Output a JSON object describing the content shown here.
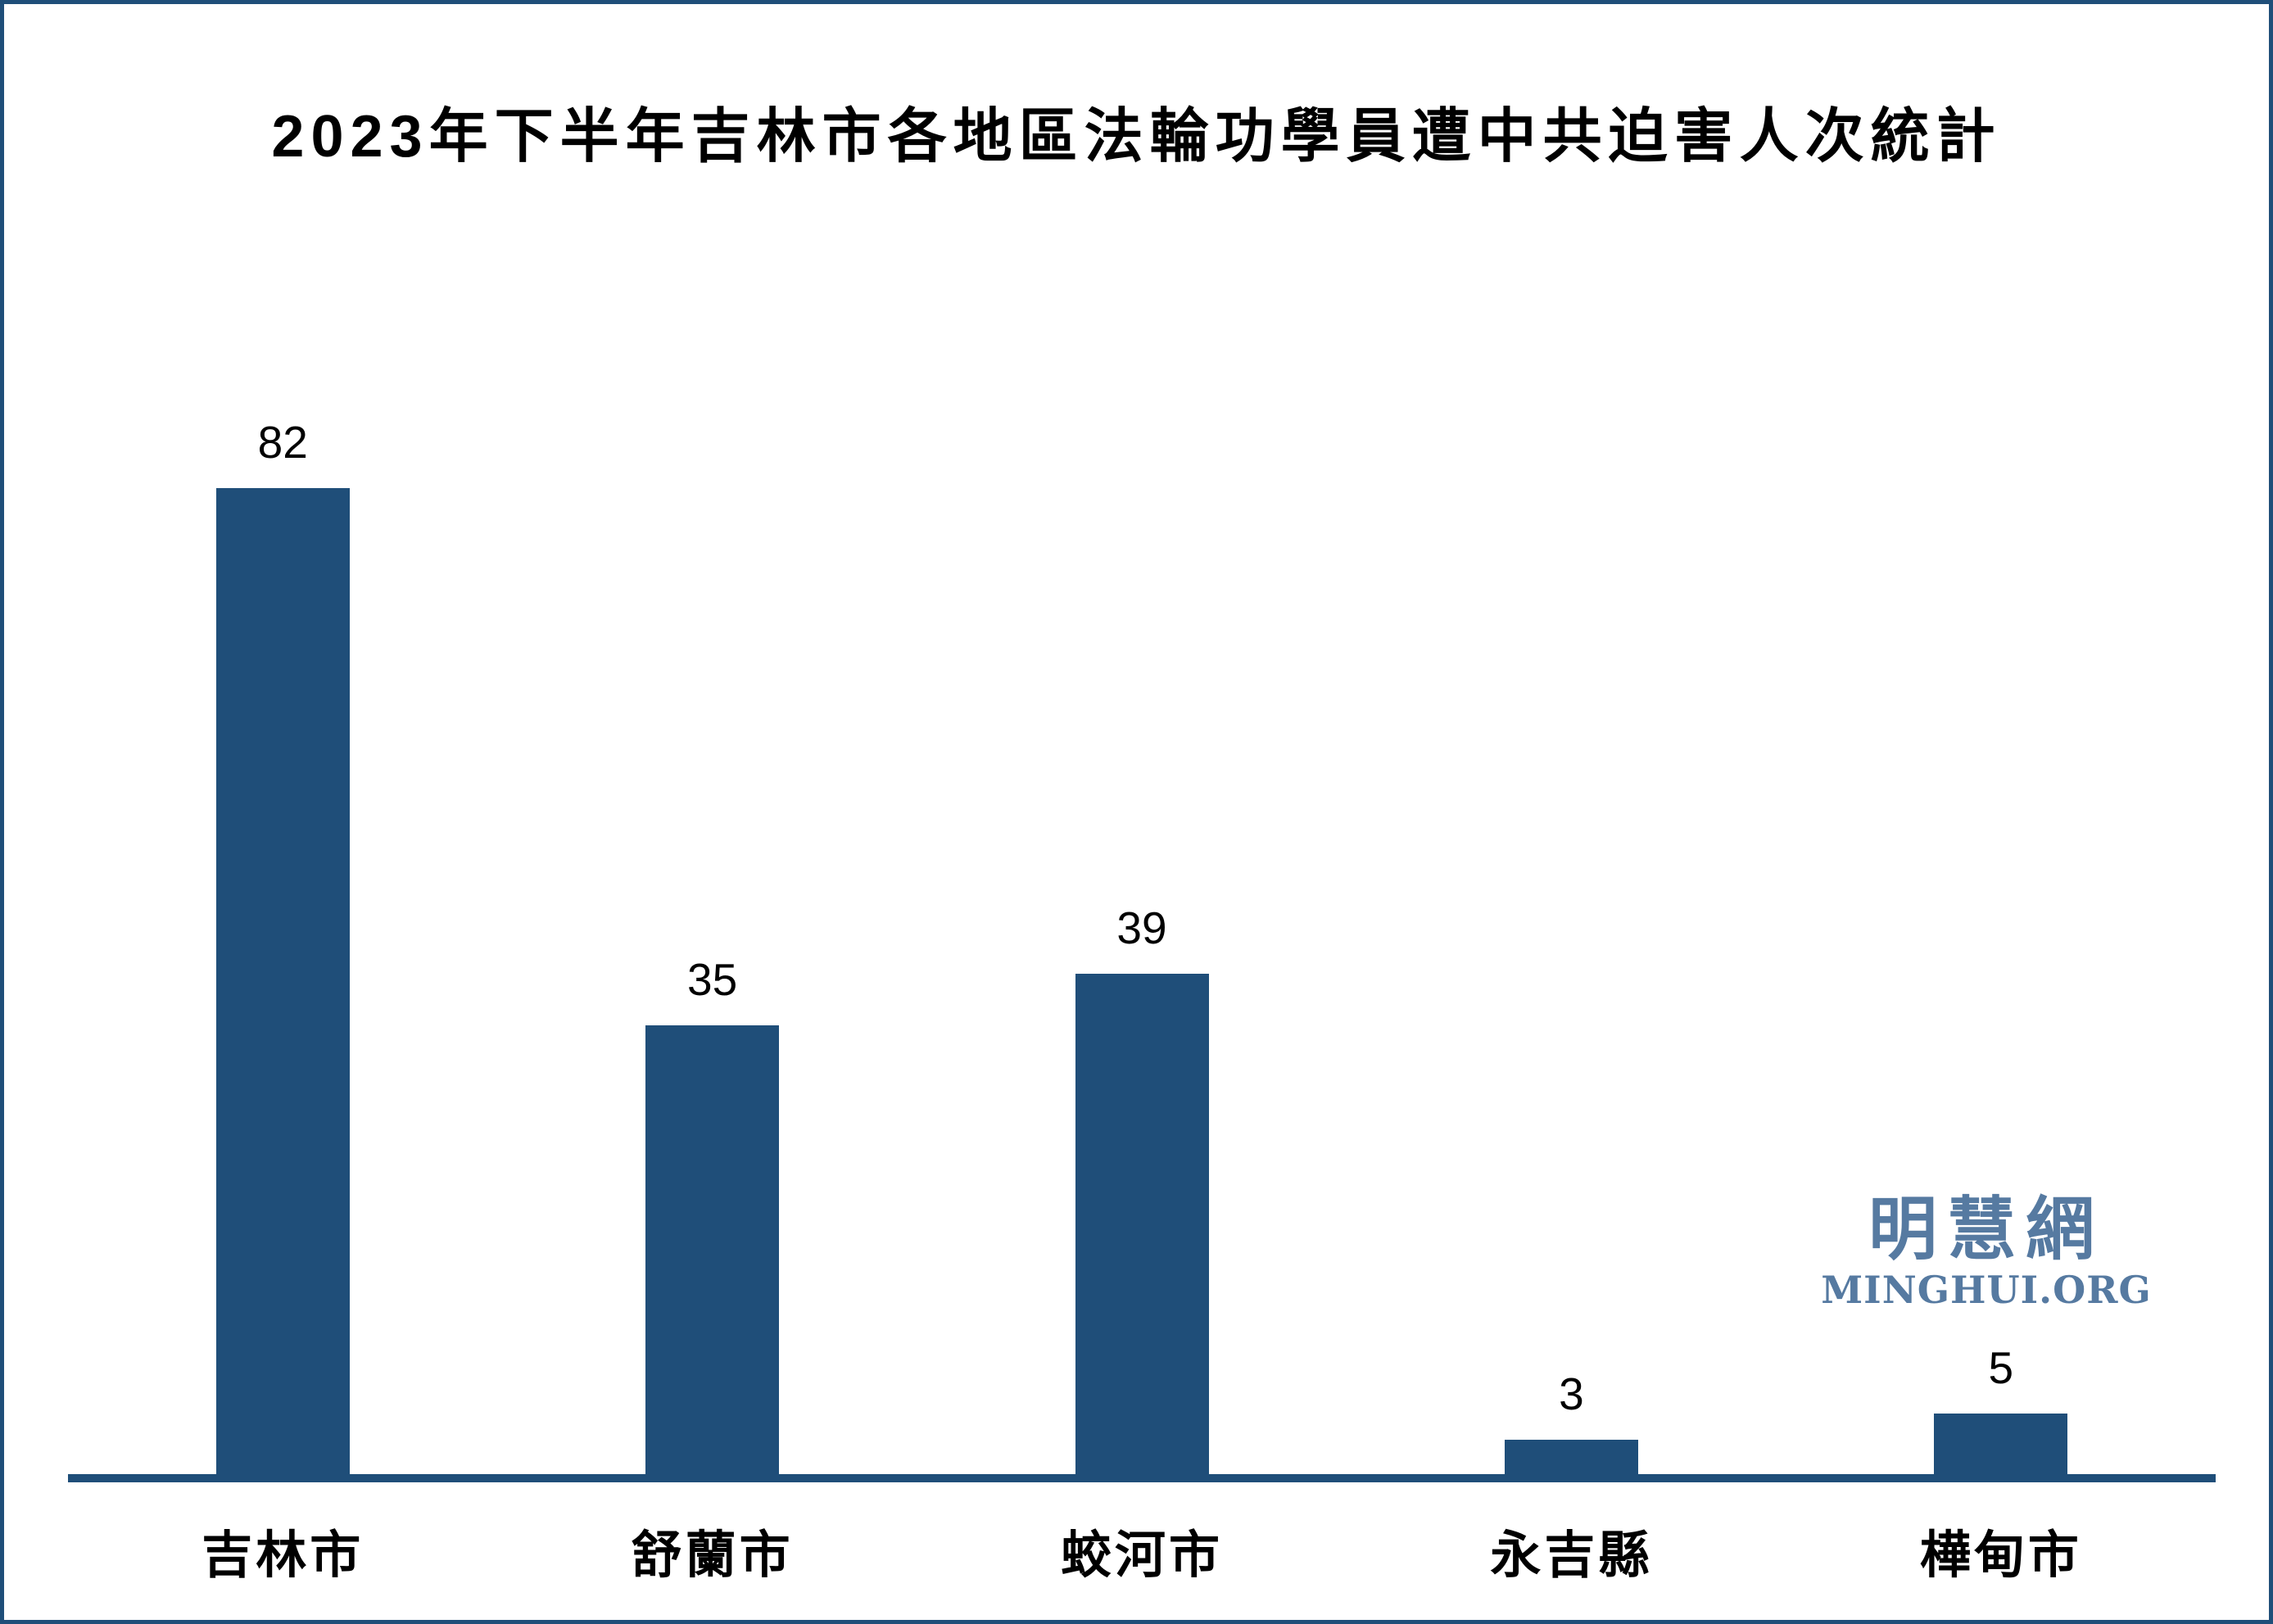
{
  "frame": {
    "background": "#FFFFFF",
    "border_color": "#1F4E79"
  },
  "chart_data": {
    "type": "bar",
    "title": "2023年下半年吉林市各地區法輪功學員遭中共迫害人次統計",
    "categories": [
      "吉林市",
      "舒蘭市",
      "蛟河市",
      "永吉縣",
      "樺甸市"
    ],
    "values": [
      82,
      35,
      39,
      3,
      5
    ],
    "xlabel": "",
    "ylabel": "",
    "ylim": [
      0,
      82
    ],
    "grid": false,
    "legend_position": "none",
    "y_axis_visible": false,
    "data_labels_visible": true,
    "bar_color": "#1F4E79",
    "axis_line_color": "#1F4E79",
    "label_color": "#000000"
  },
  "watermark": {
    "cjk_text": "明慧網",
    "latin_text": "MINGHUI.ORG",
    "color": "#567AA1"
  }
}
